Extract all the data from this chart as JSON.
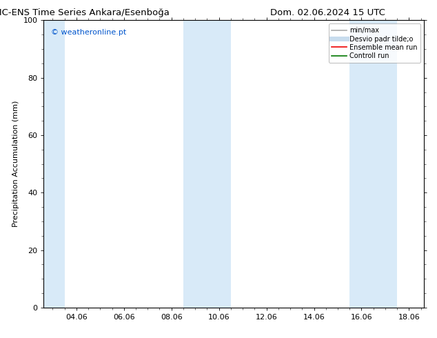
{
  "title_left": "CMC-ENS Time Series Ankara/Esenboğa",
  "title_right": "Dom. 02.06.2024 15 UTC",
  "ylabel": "Precipitation Accumulation (mm)",
  "ylim": [
    0,
    100
  ],
  "yticks": [
    0,
    20,
    40,
    60,
    80,
    100
  ],
  "xtick_labels": [
    "04.06",
    "06.06",
    "08.06",
    "10.06",
    "12.06",
    "14.06",
    "16.06",
    "18.06"
  ],
  "xtick_positions": [
    2.0,
    4.0,
    6.0,
    8.0,
    10.0,
    12.0,
    14.0,
    16.0
  ],
  "xlim": [
    0.625,
    16.625
  ],
  "watermark_text": "© weatheronline.pt",
  "watermark_color": "#0055cc",
  "bg_color": "#ffffff",
  "plot_bg_color": "#ffffff",
  "shaded_regions": [
    {
      "xmin": 0.625,
      "xmax": 1.5,
      "color": "#d8eaf8"
    },
    {
      "xmin": 6.5,
      "xmax": 8.5,
      "color": "#d8eaf8"
    },
    {
      "xmin": 13.5,
      "xmax": 15.5,
      "color": "#d8eaf8"
    }
  ],
  "legend_entries": [
    {
      "label": "min/max",
      "color": "#aaaaaa",
      "lw": 1.2,
      "style": "-"
    },
    {
      "label": "Desvio padr tilde;o",
      "color": "#c8dcee",
      "lw": 5,
      "style": "-"
    },
    {
      "label": "Ensemble mean run",
      "color": "#ee0000",
      "lw": 1.2,
      "style": "-"
    },
    {
      "label": "Controll run",
      "color": "#007700",
      "lw": 1.2,
      "style": "-"
    }
  ],
  "border_color": "#000000",
  "tick_color": "#000000",
  "title_fontsize": 9.5,
  "label_fontsize": 8,
  "tick_fontsize": 8,
  "legend_fontsize": 7,
  "watermark_fontsize": 8
}
